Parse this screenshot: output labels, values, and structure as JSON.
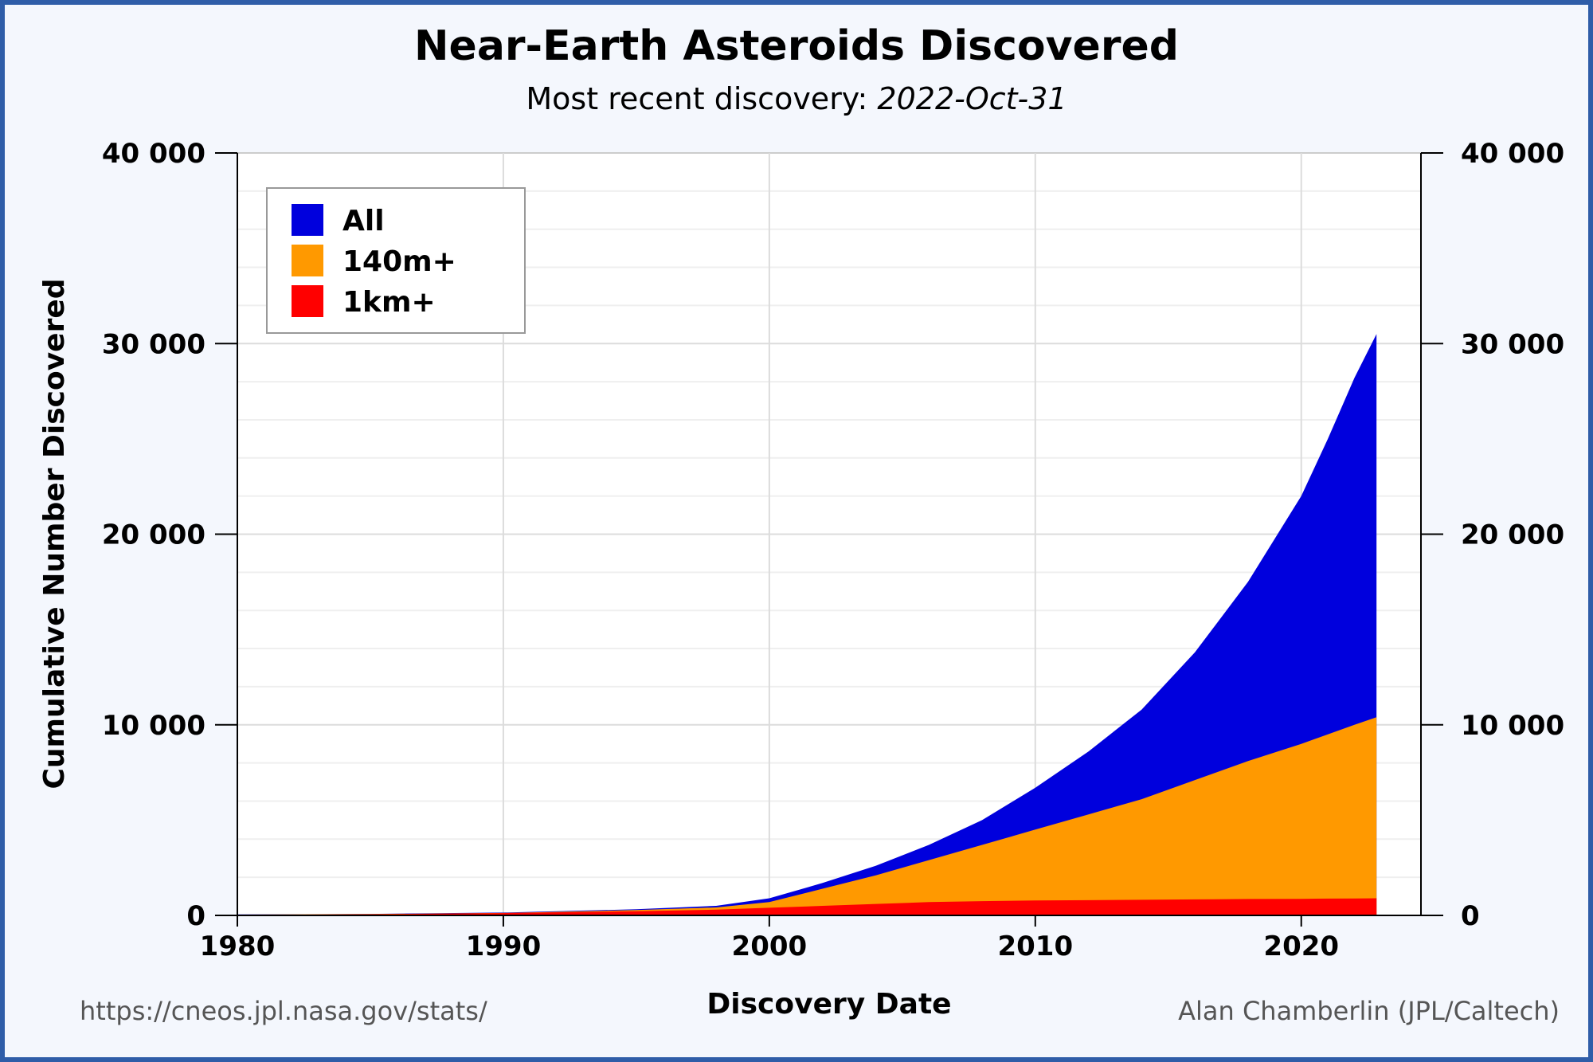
{
  "title": "Near-Earth Asteroids Discovered",
  "subtitle_prefix": "Most recent discovery: ",
  "subtitle_date": "2022-Oct-31",
  "source_url": "https://cneos.jpl.nasa.gov/stats/",
  "credit": "Alan Chamberlin (JPL/Caltech)",
  "chart_data": {
    "type": "area",
    "title": "Near-Earth Asteroids Discovered",
    "xlabel": "Discovery Date",
    "ylabel": "Cumulative Number Discovered",
    "xlim": [
      1980,
      2024.5
    ],
    "ylim": [
      0,
      40000
    ],
    "x_ticks": [
      1980,
      1990,
      2000,
      2010,
      2020
    ],
    "x_tick_labels": [
      "1980",
      "1990",
      "2000",
      "2010",
      "2020"
    ],
    "y_ticks": [
      0,
      10000,
      20000,
      30000,
      40000
    ],
    "y_tick_labels": [
      "0",
      "10 000",
      "20 000",
      "30 000",
      "40 000"
    ],
    "y_axis_right": true,
    "grid": true,
    "legend_position": "top-left",
    "overlapping": true,
    "x": [
      1980,
      1985,
      1990,
      1995,
      1998,
      2000,
      2002,
      2004,
      2006,
      2008,
      2010,
      2012,
      2014,
      2016,
      2018,
      2020,
      2021,
      2022,
      2022.83
    ],
    "series": [
      {
        "name": "All",
        "color": "#0000dd",
        "values": [
          50,
          80,
          150,
          320,
          500,
          900,
          1700,
          2600,
          3700,
          5000,
          6700,
          8600,
          10800,
          13800,
          17500,
          22000,
          25000,
          28200,
          30500
        ]
      },
      {
        "name": "140m+",
        "color": "#ff9900",
        "values": [
          40,
          70,
          130,
          280,
          420,
          700,
          1400,
          2100,
          2900,
          3700,
          4500,
          5300,
          6100,
          7100,
          8100,
          9000,
          9500,
          10000,
          10400
        ]
      },
      {
        "name": "1km+",
        "color": "#ff0000",
        "values": [
          30,
          60,
          120,
          220,
          300,
          400,
          500,
          600,
          700,
          750,
          780,
          800,
          820,
          840,
          860,
          870,
          880,
          890,
          900
        ]
      }
    ]
  }
}
